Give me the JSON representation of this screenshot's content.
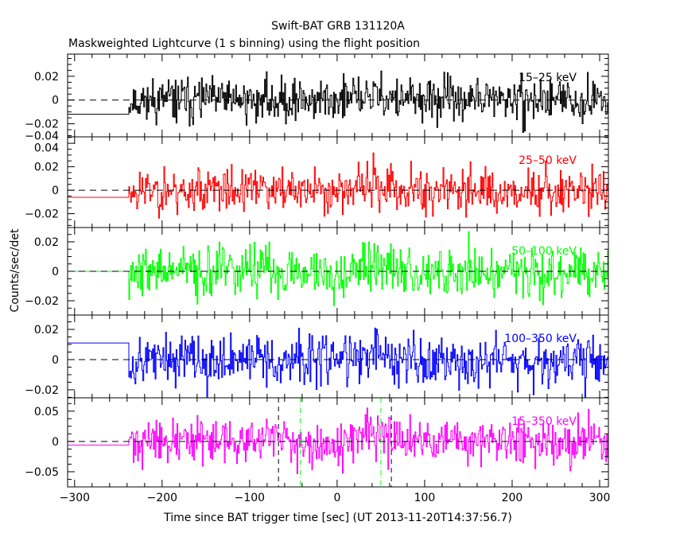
{
  "chart_data": {
    "type": "line",
    "title": "Swift-BAT GRB 131120A",
    "subtitle": "Maskweighted Lightcurve (1 s binning) using the flight position",
    "xlabel": "Time since BAT trigger time [sec] (UT 2013-11-20T14:37:56.7)",
    "ylabel": "Counts/sec/det",
    "xlim": [
      -308,
      310
    ],
    "x_ticks": [
      -300,
      -200,
      -100,
      0,
      100,
      200,
      300
    ],
    "x_tick_labels": [
      "−300",
      "−200",
      "−100",
      "0",
      "100",
      "200",
      "300"
    ],
    "binning_sec": 1,
    "data_start": -238,
    "grid": false,
    "series": [
      {
        "name": "15-25 keV",
        "label": "15–25 keV",
        "color": "#000000",
        "ylim": [
          -0.031,
          0.0387
        ],
        "y_ticks": [
          0.02,
          0,
          -0.02,
          -0.04
        ],
        "y_tick_labels": [
          "0.02",
          "0",
          "−0.02",
          "−0.04"
        ],
        "pre_level": -0.012,
        "sigma": 0.009,
        "seed": 11
      },
      {
        "name": "25-50 keV",
        "label": "25–50 keV",
        "color": "#ff0000",
        "ylim": [
          -0.0318,
          0.0455
        ],
        "y_ticks": [
          0.04,
          0.02,
          0,
          -0.02
        ],
        "y_tick_labels": [
          "0.04",
          "0.02",
          "0",
          "−0.02"
        ],
        "pre_level": -0.006,
        "sigma": 0.0095,
        "seed": 23
      },
      {
        "name": "50-100 keV",
        "label": "50–100 keV",
        "color": "#00ff00",
        "ylim": [
          -0.0297,
          0.0297
        ],
        "y_ticks": [
          0.02,
          0,
          -0.02
        ],
        "y_tick_labels": [
          "0.02",
          "0",
          "−0.02"
        ],
        "pre_level": 0.0,
        "sigma": 0.0085,
        "seed": 37
      },
      {
        "name": "100-350 keV",
        "label": "100–350 keV",
        "color": "#0000ff",
        "ylim": [
          -0.0253,
          0.0295
        ],
        "y_ticks": [
          0.02,
          0,
          -0.02
        ],
        "y_tick_labels": [
          "0.02",
          "0",
          "−0.02"
        ],
        "pre_level": 0.011,
        "sigma": 0.0085,
        "seed": 53
      },
      {
        "name": "15-350 keV",
        "label": "15–350 keV",
        "color": "#ff00ff",
        "ylim": [
          -0.075,
          0.072
        ],
        "y_ticks": [
          0.05,
          0,
          -0.05
        ],
        "y_tick_labels": [
          "0.05",
          "0",
          "−0.05"
        ],
        "pre_level": -0.006,
        "sigma": 0.018,
        "seed": 71
      }
    ],
    "markers": [
      {
        "x": -67,
        "style": "dashed",
        "color": "#000000"
      },
      {
        "x": 62,
        "style": "dashed",
        "color": "#000000"
      },
      {
        "x": -42,
        "style": "dash-dot",
        "color": "#00ff00"
      },
      {
        "x": 50,
        "style": "dash-dot",
        "color": "#00ff00"
      }
    ]
  }
}
